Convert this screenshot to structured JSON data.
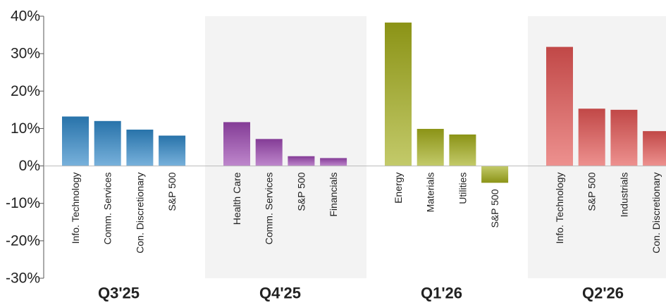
{
  "chart_data": {
    "type": "bar",
    "ylim": [
      -30,
      40
    ],
    "yticks": [
      40,
      30,
      20,
      10,
      0,
      -10,
      -20,
      -30
    ],
    "ytick_labels": [
      "40%",
      "30%",
      "20%",
      "10%",
      "0%",
      "-10%",
      "-20%",
      "-30%"
    ],
    "grid": false,
    "groups": [
      {
        "label": "Q3'25",
        "color": "#2f87c8",
        "shaded": false,
        "categories": [
          "Info. Technology",
          "Comm. Services",
          "Con. Discretionary",
          "S&P 500"
        ],
        "values": [
          13.2,
          12.0,
          9.7,
          8.1
        ]
      },
      {
        "label": "Q4'25",
        "color": "#9b47b0",
        "shaded": true,
        "categories": [
          "Health Care",
          "Comm. Services",
          "S&P 500",
          "Financials"
        ],
        "values": [
          11.7,
          7.2,
          2.6,
          2.1
        ]
      },
      {
        "label": "Q1'26",
        "color": "#a3ad1a",
        "shaded": false,
        "categories": [
          "Energy",
          "Materials",
          "Utilities",
          "S&P 500"
        ],
        "values": [
          38.3,
          9.9,
          8.4,
          -4.5
        ]
      },
      {
        "label": "Q2'26",
        "color": "#e35553",
        "shaded": true,
        "categories": [
          "Info. Technology",
          "S&P 500",
          "Industrials",
          "Con. Discretionary"
        ],
        "values": [
          31.8,
          15.3,
          15.0,
          9.3
        ]
      }
    ]
  }
}
